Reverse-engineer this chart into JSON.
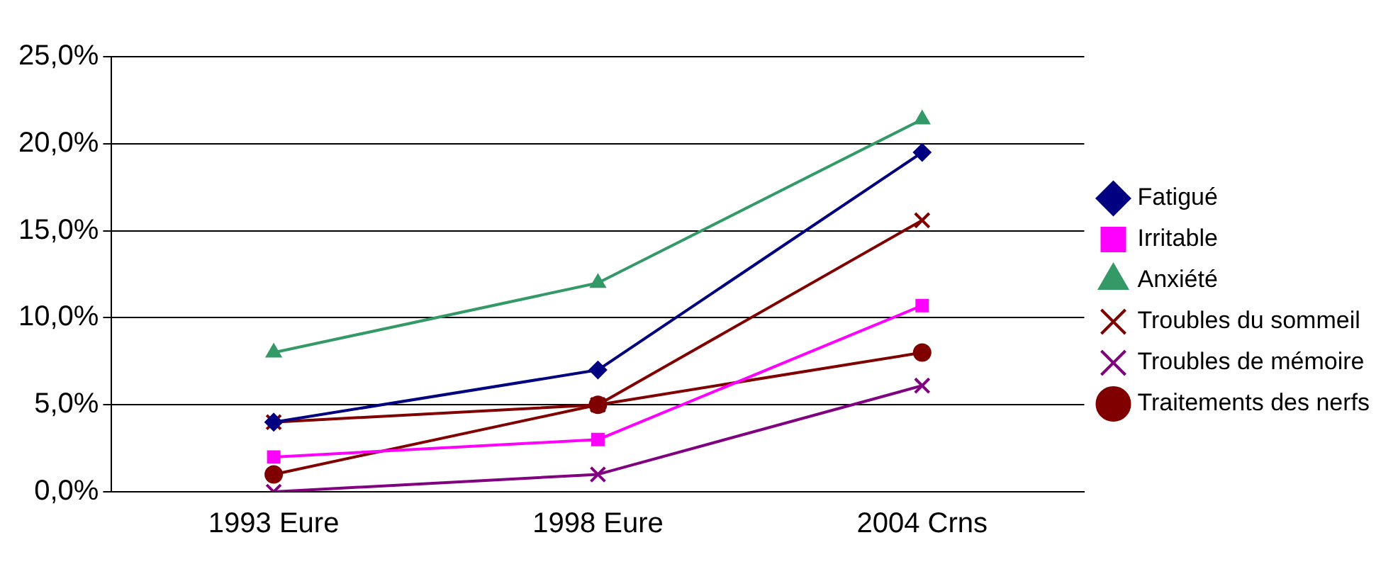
{
  "chart_data": {
    "type": "line",
    "categories": [
      "1993 Eure",
      "1998 Eure",
      "2004 Crns"
    ],
    "series": [
      {
        "name": "Fatigué",
        "color": "#000080",
        "marker": "diamond",
        "values": [
          4.0,
          7.0,
          19.5
        ]
      },
      {
        "name": "Irritable",
        "color": "#ff00ff",
        "marker": "square",
        "values": [
          2.0,
          3.0,
          10.7
        ]
      },
      {
        "name": "Anxiété",
        "color": "#339966",
        "marker": "triangle",
        "values": [
          8.0,
          12.0,
          21.4
        ]
      },
      {
        "name": "Troubles du sommeil",
        "color": "#800000",
        "marker": "cross",
        "values": [
          4.0,
          5.0,
          15.6
        ]
      },
      {
        "name": "Troubles de mémoire",
        "color": "#800080",
        "marker": "cross",
        "values": [
          0.0,
          1.0,
          6.1
        ]
      },
      {
        "name": "Traitements des nerfs",
        "color": "#800000",
        "marker": "circle",
        "values": [
          1.0,
          5.0,
          8.0
        ]
      }
    ],
    "ylim": [
      0,
      25
    ],
    "yticks": [
      {
        "value": 0,
        "label": "0,0%"
      },
      {
        "value": 5,
        "label": "5,0%"
      },
      {
        "value": 10,
        "label": "10,0%"
      },
      {
        "value": 15,
        "label": "15,0%"
      },
      {
        "value": 20,
        "label": "20,0%"
      },
      {
        "value": 25,
        "label": "25,0%"
      }
    ],
    "grid": "y",
    "legend": "right",
    "line_style": "solid"
  }
}
